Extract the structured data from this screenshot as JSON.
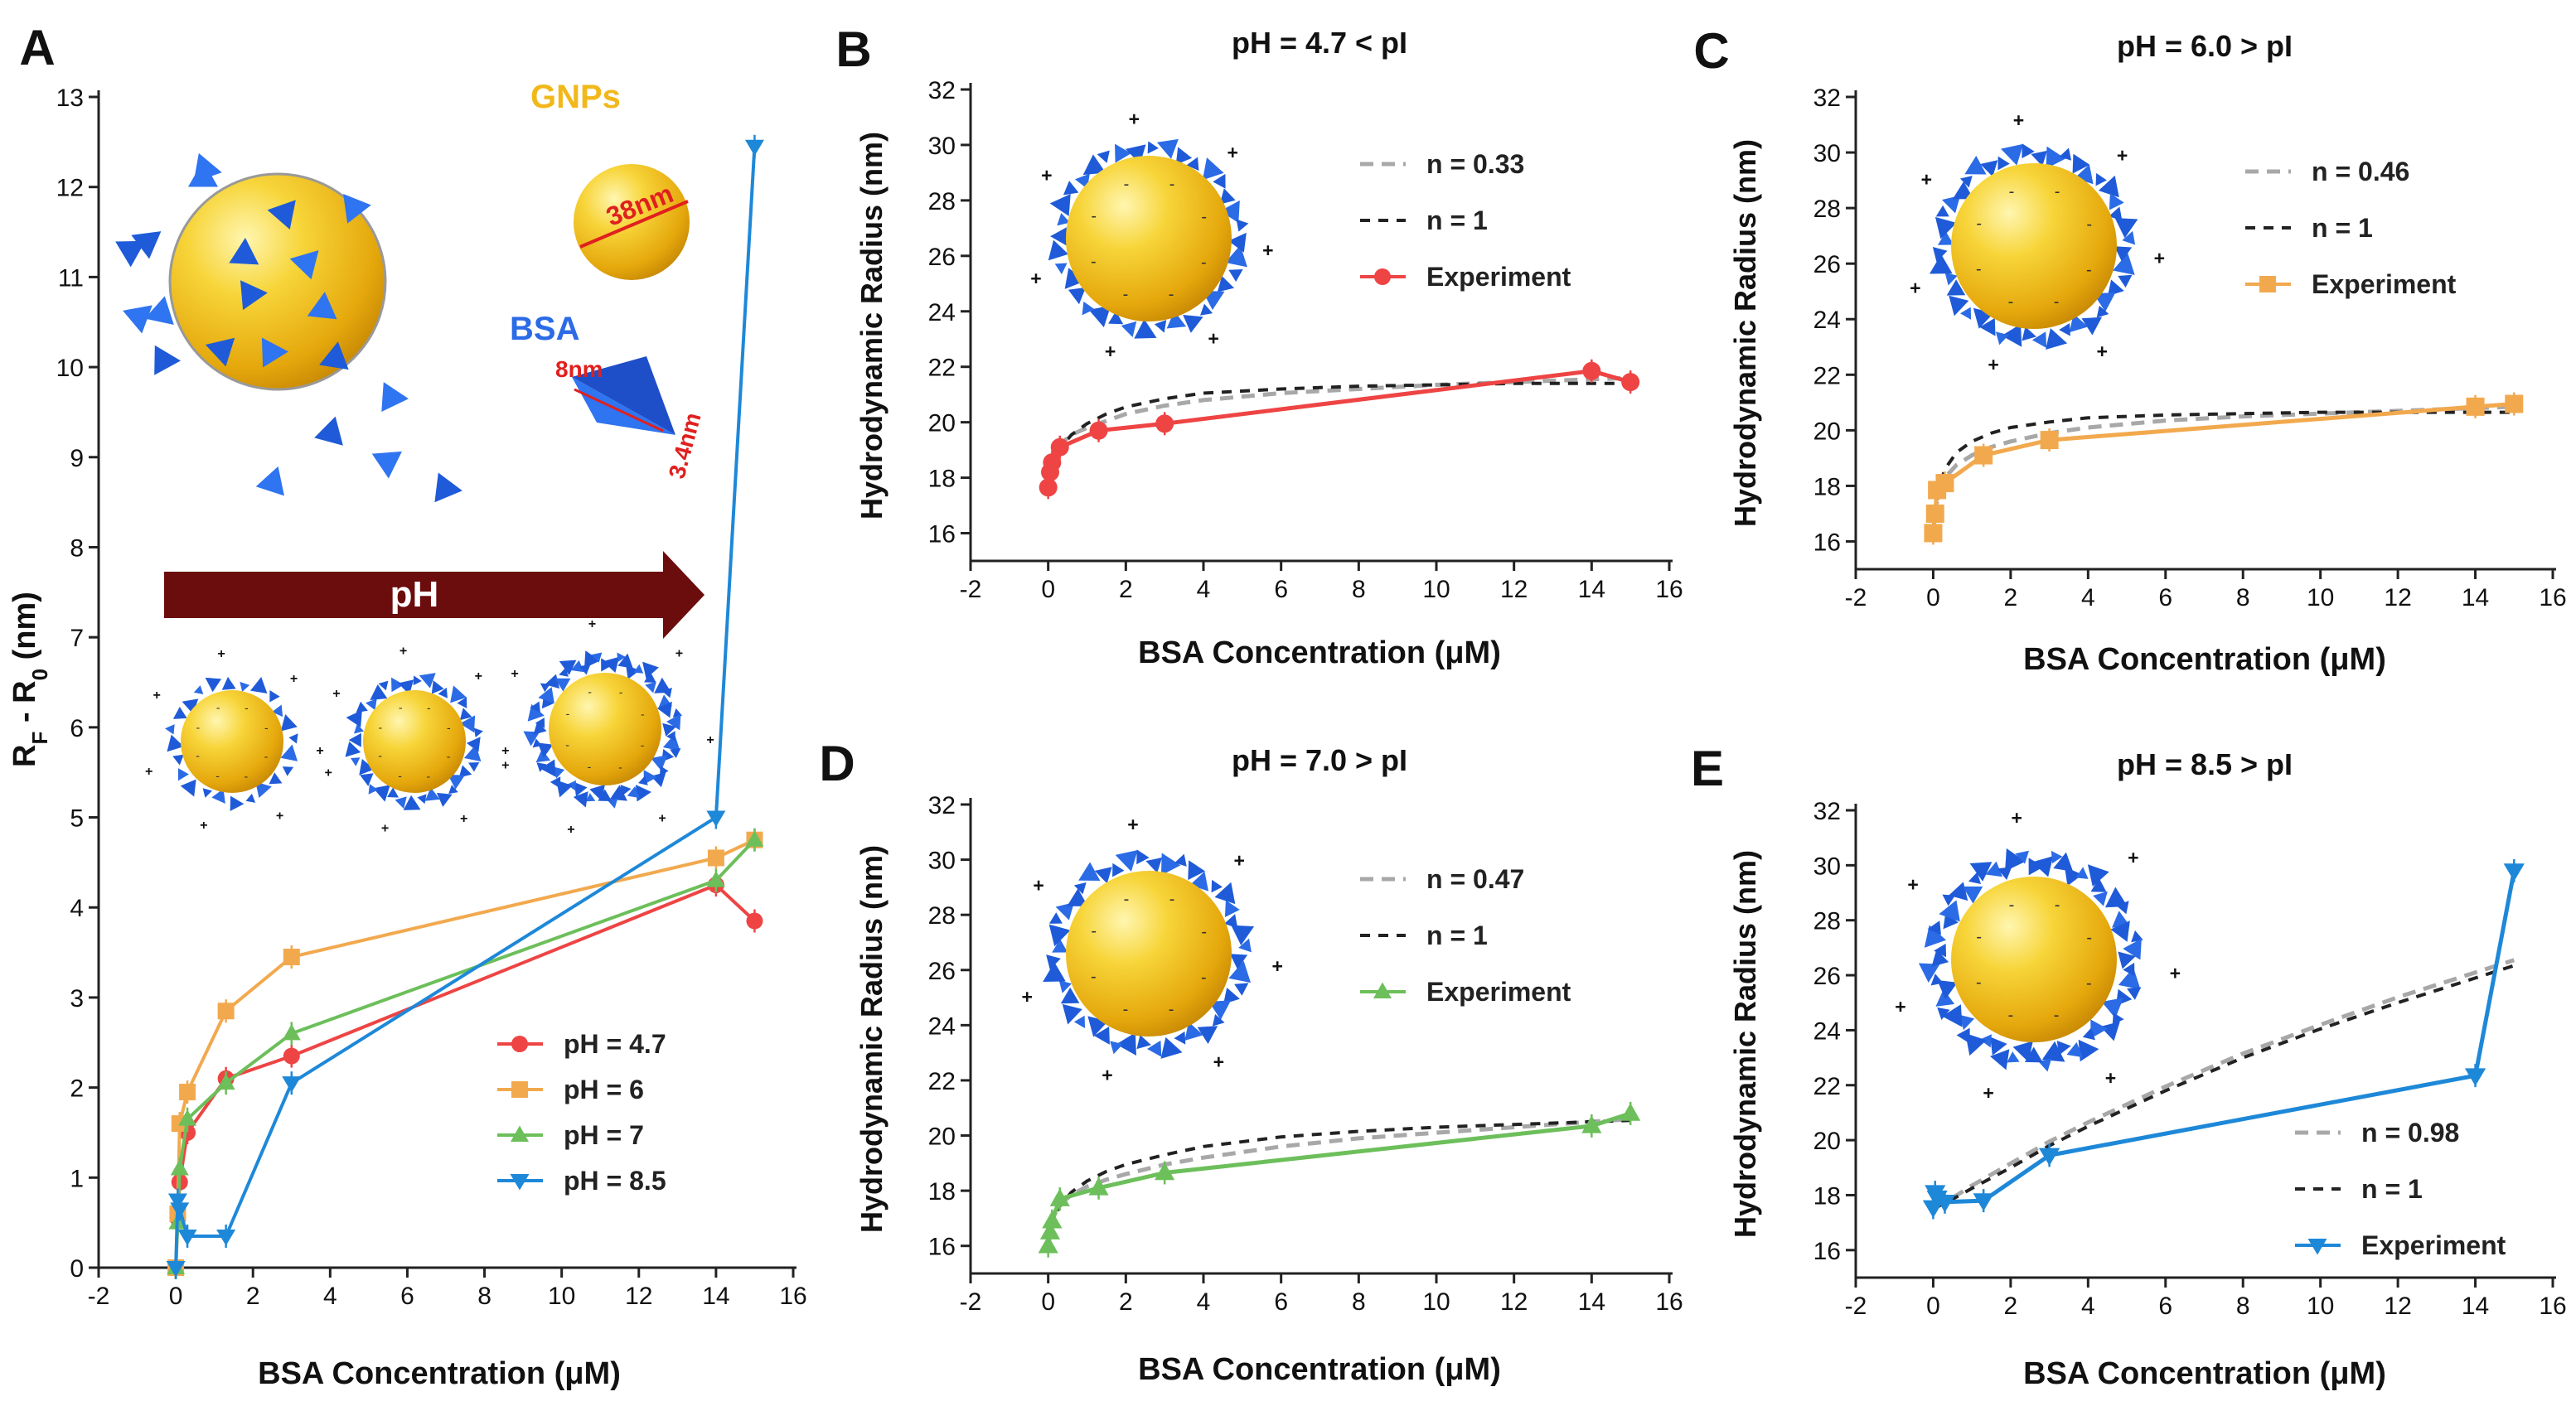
{
  "colors": {
    "ph47": "#EE4444",
    "ph6": "#F2A94E",
    "ph7": "#6CBF5A",
    "ph85": "#1E88D8",
    "gold": "#F2C21A",
    "protein": "#1F5BD8",
    "arrow": "#6B0D0D",
    "fit_light": "#A8A8A8",
    "fit_dark": "#222222"
  },
  "chart_data": [
    {
      "panel": "A",
      "type": "line",
      "title": "",
      "xlabel": "BSA Concentration (μM)",
      "ylabel": "R_F - R_0 (nm)",
      "xlim": [
        -2,
        16
      ],
      "ylim": [
        0,
        13
      ],
      "xticks": [
        "-2",
        "0",
        "2",
        "4",
        "6",
        "8",
        "10",
        "12",
        "14",
        "16"
      ],
      "yticks": [
        "0",
        "1",
        "2",
        "3",
        "4",
        "5",
        "6",
        "7",
        "8",
        "9",
        "10",
        "11",
        "12",
        "13"
      ],
      "legend": "bottom-right",
      "annotations": {
        "gnp_label": "GNPs",
        "gnp_size": "38nm",
        "bsa_label": "BSA",
        "bsa_len": "8nm",
        "bsa_width": "3.4nm",
        "ph_arrow": "pH"
      },
      "series": [
        {
          "name": "pH = 4.7",
          "marker": "circle",
          "color": "#EE4444",
          "x": [
            0,
            0.05,
            0.1,
            0.3,
            1.3,
            3,
            14,
            15
          ],
          "y": [
            0,
            0.55,
            0.95,
            1.5,
            2.1,
            2.35,
            4.25,
            3.85
          ]
        },
        {
          "name": "pH = 6",
          "marker": "square",
          "color": "#F2A94E",
          "x": [
            0,
            0.05,
            0.1,
            0.3,
            1.3,
            3,
            14,
            15
          ],
          "y": [
            0,
            0.6,
            1.6,
            1.95,
            2.85,
            3.45,
            4.55,
            4.75
          ]
        },
        {
          "name": "pH = 7",
          "marker": "triangle-up",
          "color": "#6CBF5A",
          "x": [
            0,
            0.05,
            0.1,
            0.3,
            1.3,
            3,
            14,
            15
          ],
          "y": [
            0,
            0.5,
            1.1,
            1.65,
            2.05,
            2.6,
            4.3,
            4.75
          ]
        },
        {
          "name": "pH = 8.5",
          "marker": "triangle-down",
          "color": "#1E88D8",
          "x": [
            0,
            0.05,
            0.1,
            0.3,
            1.3,
            3,
            14,
            15
          ],
          "y": [
            0,
            0.75,
            0.65,
            0.35,
            0.35,
            2.05,
            5.0,
            12.45
          ]
        }
      ]
    },
    {
      "panel": "B",
      "type": "line",
      "title": "pH = 4.7 < pI",
      "xlabel": "BSA Concentration (μM)",
      "ylabel": "Hydrodynamic Radius (nm)",
      "xlim": [
        -2,
        16
      ],
      "ylim": [
        15,
        32
      ],
      "xticks": [
        "-2",
        "0",
        "2",
        "4",
        "6",
        "8",
        "10",
        "12",
        "14",
        "16"
      ],
      "yticks": [
        "16",
        "18",
        "20",
        "22",
        "24",
        "26",
        "28",
        "30",
        "32"
      ],
      "legend": "top-right",
      "series": [
        {
          "name": "n = 0.33",
          "style": "dashed-light",
          "x": [
            0,
            0.05,
            0.15,
            0.3,
            0.6,
            1,
            1.5,
            2,
            3,
            4,
            6,
            8,
            10,
            12,
            14,
            15
          ],
          "y": [
            17.6,
            18.25,
            18.85,
            19.2,
            19.55,
            19.8,
            20.05,
            20.3,
            20.6,
            20.8,
            21.05,
            21.2,
            21.35,
            21.45,
            21.55,
            21.6
          ]
        },
        {
          "name": "n = 1",
          "style": "dashed-dark",
          "x": [
            0,
            0.05,
            0.15,
            0.3,
            0.6,
            1,
            1.5,
            2,
            3,
            4,
            6,
            8,
            10,
            12,
            14,
            15
          ],
          "y": [
            17.6,
            18.05,
            18.55,
            19.05,
            19.55,
            19.95,
            20.3,
            20.55,
            20.85,
            21.05,
            21.2,
            21.3,
            21.35,
            21.4,
            21.4,
            21.4
          ]
        },
        {
          "name": "Experiment",
          "marker": "circle",
          "color": "#EE4444",
          "x": [
            0,
            0.05,
            0.1,
            0.3,
            1.3,
            3,
            14,
            15
          ],
          "y": [
            17.65,
            18.2,
            18.55,
            19.1,
            19.7,
            19.95,
            21.85,
            21.45
          ]
        }
      ]
    },
    {
      "panel": "C",
      "type": "line",
      "title": "pH = 6.0 > pI",
      "xlabel": "BSA Concentration (μM)",
      "ylabel": "Hydrodynamic Radius (nm)",
      "xlim": [
        -2,
        16
      ],
      "ylim": [
        15,
        32
      ],
      "xticks": [
        "-2",
        "0",
        "2",
        "4",
        "6",
        "8",
        "10",
        "12",
        "14",
        "16"
      ],
      "yticks": [
        "16",
        "18",
        "20",
        "22",
        "24",
        "26",
        "28",
        "30",
        "32"
      ],
      "legend": "top-right",
      "series": [
        {
          "name": "n = 0.46",
          "style": "dashed-light",
          "x": [
            0,
            0.05,
            0.15,
            0.3,
            0.6,
            1,
            1.5,
            2,
            3,
            4,
            6,
            8,
            10,
            12,
            14,
            15
          ],
          "y": [
            16.2,
            17.1,
            17.8,
            18.3,
            18.75,
            19.1,
            19.4,
            19.6,
            19.9,
            20.1,
            20.35,
            20.5,
            20.6,
            20.7,
            20.8,
            20.85
          ]
        },
        {
          "name": "n = 1",
          "style": "dashed-dark",
          "x": [
            0,
            0.05,
            0.15,
            0.3,
            0.6,
            1,
            1.5,
            2,
            3,
            4,
            6,
            8,
            10,
            12,
            14,
            15
          ],
          "y": [
            16.2,
            17.0,
            17.9,
            18.6,
            19.2,
            19.6,
            19.9,
            20.1,
            20.3,
            20.45,
            20.55,
            20.6,
            20.65,
            20.65,
            20.65,
            20.65
          ]
        },
        {
          "name": "Experiment",
          "marker": "square",
          "color": "#F2A94E",
          "x": [
            0,
            0.05,
            0.1,
            0.3,
            1.3,
            3,
            14,
            15
          ],
          "y": [
            16.3,
            17.0,
            17.85,
            18.1,
            19.1,
            19.65,
            20.85,
            20.95
          ]
        }
      ]
    },
    {
      "panel": "D",
      "type": "line",
      "title": "pH = 7.0 > pI",
      "xlabel": "BSA Concentration (μM)",
      "ylabel": "Hydrodynamic Radius (nm)",
      "xlim": [
        -2,
        16
      ],
      "ylim": [
        15,
        32
      ],
      "xticks": [
        "-2",
        "0",
        "2",
        "4",
        "6",
        "8",
        "10",
        "12",
        "14",
        "16"
      ],
      "yticks": [
        "16",
        "18",
        "20",
        "22",
        "24",
        "26",
        "28",
        "30",
        "32"
      ],
      "legend": "top-right",
      "series": [
        {
          "name": "n = 0.47",
          "style": "dashed-light",
          "x": [
            0,
            0.05,
            0.15,
            0.3,
            0.6,
            1,
            1.5,
            2,
            3,
            4,
            6,
            8,
            10,
            12,
            14,
            15
          ],
          "y": [
            16.0,
            16.6,
            17.1,
            17.5,
            17.85,
            18.15,
            18.4,
            18.6,
            18.95,
            19.2,
            19.6,
            19.9,
            20.1,
            20.3,
            20.5,
            20.6
          ]
        },
        {
          "name": "n = 1",
          "style": "dashed-dark",
          "x": [
            0,
            0.05,
            0.15,
            0.3,
            0.6,
            1,
            1.5,
            2,
            3,
            4,
            6,
            8,
            10,
            12,
            14,
            15
          ],
          "y": [
            16.0,
            16.45,
            16.95,
            17.45,
            17.95,
            18.35,
            18.7,
            18.95,
            19.3,
            19.6,
            19.95,
            20.15,
            20.3,
            20.4,
            20.5,
            20.55
          ]
        },
        {
          "name": "Experiment",
          "marker": "triangle-up",
          "color": "#6CBF5A",
          "x": [
            0,
            0.05,
            0.1,
            0.3,
            1.3,
            3,
            14,
            15
          ],
          "y": [
            16.0,
            16.5,
            16.9,
            17.7,
            18.1,
            18.65,
            20.35,
            20.8
          ]
        }
      ]
    },
    {
      "panel": "E",
      "type": "line",
      "title": "pH = 8.5 > pI",
      "xlabel": "BSA Concentration (μM)",
      "ylabel": "Hydrodynamic Radius (nm)",
      "xlim": [
        -2,
        16
      ],
      "ylim": [
        15,
        32
      ],
      "xticks": [
        "-2",
        "0",
        "2",
        "4",
        "6",
        "8",
        "10",
        "12",
        "14",
        "16"
      ],
      "yticks": [
        "16",
        "18",
        "20",
        "22",
        "24",
        "26",
        "28",
        "30",
        "32"
      ],
      "legend": "bottom-right",
      "series": [
        {
          "name": "n = 0.98",
          "style": "dashed-light",
          "x": [
            0,
            0.5,
            1,
            2,
            3,
            4,
            6,
            8,
            10,
            12,
            14,
            15
          ],
          "y": [
            17.5,
            17.9,
            18.35,
            19.15,
            19.95,
            20.65,
            21.95,
            23.15,
            24.2,
            25.2,
            26.1,
            26.55
          ]
        },
        {
          "name": "n = 1",
          "style": "dashed-dark",
          "x": [
            0,
            0.5,
            1,
            2,
            3,
            4,
            6,
            8,
            10,
            12,
            14,
            15
          ],
          "y": [
            17.5,
            17.85,
            18.25,
            19.0,
            19.8,
            20.5,
            21.8,
            23.0,
            24.05,
            25.0,
            25.9,
            26.35
          ]
        },
        {
          "name": "Experiment",
          "marker": "triangle-down",
          "color": "#1E88D8",
          "x": [
            0,
            0.05,
            0.1,
            0.3,
            1.3,
            3,
            14,
            15
          ],
          "y": [
            17.55,
            18.1,
            17.9,
            17.75,
            17.8,
            19.45,
            22.35,
            29.8
          ]
        }
      ]
    }
  ]
}
